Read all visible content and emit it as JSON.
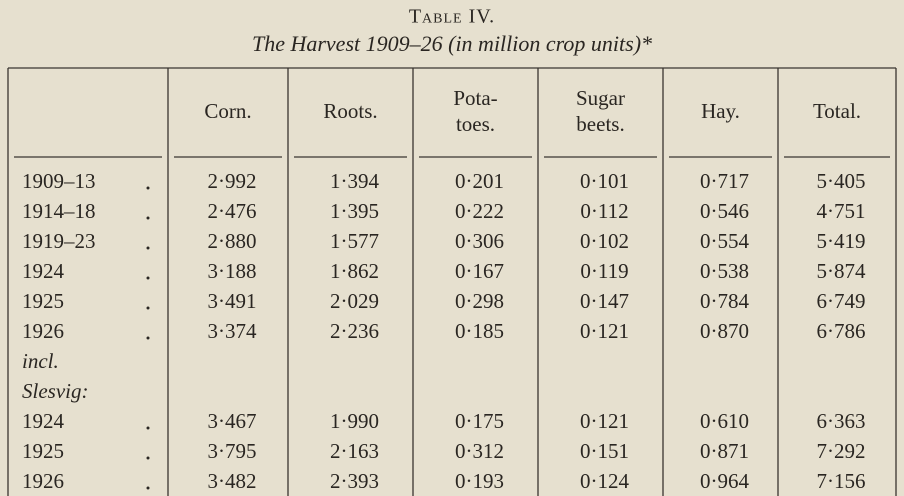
{
  "header": {
    "title": "Table IV.",
    "subtitle": "The Harvest 1909–26 (in million crop units)*"
  },
  "table": {
    "columns": [
      [
        "Corn."
      ],
      [
        "Roots."
      ],
      [
        "Pota-",
        "toes."
      ],
      [
        "Sugar",
        "beets."
      ],
      [
        "Hay."
      ],
      [
        "Total."
      ]
    ],
    "rows": [
      {
        "label": "1909–13",
        "cells": [
          "2·992",
          "1·394",
          "0·201",
          "0·101",
          "0·717",
          "5·405"
        ]
      },
      {
        "label": "1914–18",
        "cells": [
          "2·476",
          "1·395",
          "0·222",
          "0·112",
          "0·546",
          "4·751"
        ]
      },
      {
        "label": "1919–23",
        "cells": [
          "2·880",
          "1·577",
          "0·306",
          "0·102",
          "0·554",
          "5·419"
        ]
      },
      {
        "label": "1924",
        "cells": [
          "3·188",
          "1·862",
          "0·167",
          "0·119",
          "0·538",
          "5·874"
        ]
      },
      {
        "label": "1925",
        "cells": [
          "3·491",
          "2·029",
          "0·298",
          "0·147",
          "0·784",
          "6·749"
        ]
      },
      {
        "label": "1926",
        "cells": [
          "3·374",
          "2·236",
          "0·185",
          "0·121",
          "0·870",
          "6·786"
        ]
      },
      {
        "label": "incl."
      },
      {
        "label": "Slesvig:"
      },
      {
        "label": "1924",
        "cells": [
          "3·467",
          "1·990",
          "0·175",
          "0·121",
          "0·610",
          "6·363"
        ]
      },
      {
        "label": "1925",
        "cells": [
          "3·795",
          "2·163",
          "0·312",
          "0·151",
          "0·871",
          "7·292"
        ]
      },
      {
        "label": "1926",
        "cells": [
          "3·482",
          "2·393",
          "0·193",
          "0·124",
          "0·964",
          "7·156"
        ]
      }
    ]
  }
}
